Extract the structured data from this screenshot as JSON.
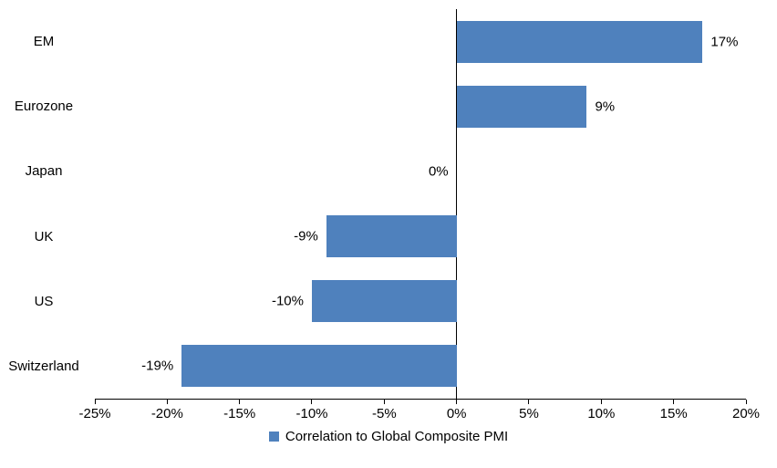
{
  "chart_data": {
    "type": "bar",
    "orientation": "horizontal",
    "title": "",
    "categories": [
      "EM",
      "Eurozone",
      "Japan",
      "UK",
      "US",
      "Switzerland"
    ],
    "series": [
      {
        "name": "Correlation to Global Composite PMI",
        "values": [
          17,
          9,
          0,
          -9,
          -10,
          -19
        ]
      }
    ],
    "value_labels": [
      "17%",
      "9%",
      "0%",
      "-9%",
      "-10%",
      "-19%"
    ],
    "xlabel": "",
    "ylabel": "",
    "xlim": [
      -25,
      20
    ],
    "x_ticks": [
      -25,
      -20,
      -15,
      -10,
      -5,
      0,
      5,
      10,
      15,
      20
    ],
    "x_tick_labels": [
      "-25%",
      "-20%",
      "-15%",
      "-10%",
      "-5%",
      "0%",
      "5%",
      "10%",
      "15%",
      "20%"
    ],
    "grid": false,
    "bar_color": "#4f81bd",
    "axis_color": "#000000",
    "legend_position": "bottom",
    "legend": [
      {
        "label": "Correlation to Global Composite PMI",
        "color": "#4f81bd"
      }
    ]
  }
}
